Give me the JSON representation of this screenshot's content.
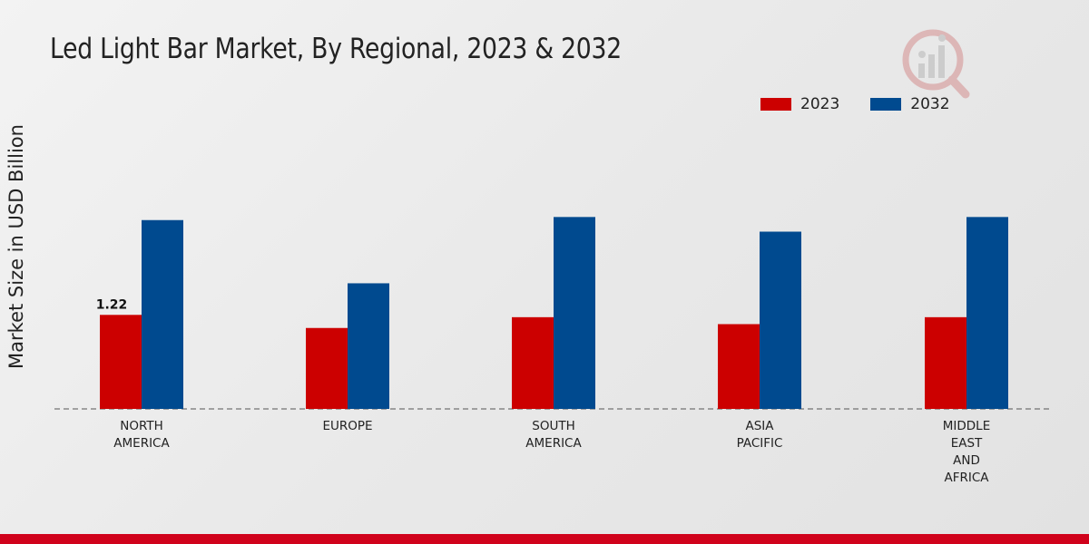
{
  "chart_data": {
    "type": "bar",
    "title": "Led Light Bar Market, By Regional, 2023 & 2032",
    "xlabel": "",
    "ylabel": "Market Size in USD Billion",
    "categories": [
      [
        "NORTH",
        "AMERICA"
      ],
      [
        "EUROPE"
      ],
      [
        "SOUTH",
        "AMERICA"
      ],
      [
        "ASIA",
        "PACIFIC"
      ],
      [
        "MIDDLE",
        "EAST",
        "AND",
        "AFRICA"
      ]
    ],
    "series": [
      {
        "name": "2023",
        "color": "#cc0000",
        "values": [
          1.22,
          1.05,
          1.19,
          1.1,
          1.19
        ]
      },
      {
        "name": "2032",
        "color": "#004a8f",
        "values": [
          2.45,
          1.63,
          2.49,
          2.3,
          2.49
        ]
      }
    ],
    "data_labels": [
      {
        "series": 0,
        "index": 0,
        "text": "1.22"
      }
    ],
    "ylim": [
      0,
      4
    ],
    "grid": false,
    "legend_position": "top-right"
  },
  "branding": {
    "logo_icon": "market-research-logo-icon",
    "footer_color": "#d0021b"
  }
}
